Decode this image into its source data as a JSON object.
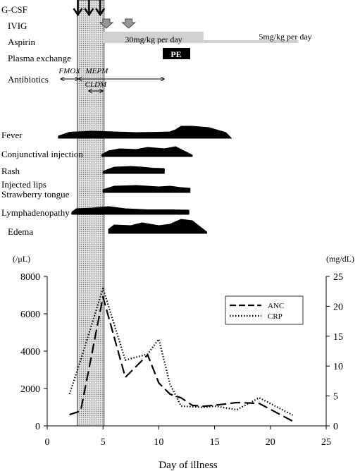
{
  "timeline": {
    "rows": {
      "gcsf": "G-CSF",
      "ivig": "IVIG",
      "aspirin": "Aspirin",
      "plasma_exchange": "Plasma exchange",
      "antibiotics": "Antibiotics"
    },
    "aspirin_high": {
      "label": "30mg/kg per day",
      "start_day": 5,
      "end_day": 14
    },
    "aspirin_low": {
      "label": "5mg/kg per day",
      "start_day": 14,
      "end_day": 25
    },
    "pe_box": {
      "label": "PE",
      "start_day": 10.5,
      "end_day": 12
    },
    "gcsf_days": [
      3,
      4,
      5
    ],
    "ivig_days": [
      5.3,
      7.3
    ],
    "antibiotics": [
      {
        "label": "FMOX",
        "start_day": 1.2,
        "end_day": 2.8
      },
      {
        "label": "MEPM",
        "start_day": 2.8,
        "end_day": 10.5
      },
      {
        "label": "CLDM",
        "start_day": 3.7,
        "end_day": 5
      }
    ],
    "shaded_period": {
      "start_day": 2.7,
      "end_day": 5.1
    },
    "symptoms": [
      {
        "key": "fever",
        "label": "Fever",
        "start_day": 1,
        "end_day": 16.5,
        "profile": [
          [
            1,
            0.3
          ],
          [
            2,
            0.85
          ],
          [
            4,
            1
          ],
          [
            6,
            0.9
          ],
          [
            8,
            0.8
          ],
          [
            10,
            0.85
          ],
          [
            11,
            0.9
          ],
          [
            11.5,
            1.2
          ],
          [
            12,
            1.7
          ],
          [
            13,
            1.7
          ],
          [
            14.5,
            1.5
          ],
          [
            16,
            0.8
          ],
          [
            16.5,
            0
          ]
        ]
      },
      {
        "key": "conjunctival",
        "label": "Conjunctival injection",
        "start_day": 4.9,
        "end_day": 13,
        "profile": [
          [
            4.9,
            0.3
          ],
          [
            5.5,
            0.8
          ],
          [
            6.5,
            1.1
          ],
          [
            8,
            1
          ],
          [
            9,
            1.3
          ],
          [
            10.5,
            1.1
          ],
          [
            11.5,
            1.4
          ],
          [
            12,
            1
          ],
          [
            12.5,
            0.6
          ],
          [
            13,
            0.2
          ]
        ]
      },
      {
        "key": "rash",
        "label": "Rash",
        "start_day": 5,
        "end_day": 10.5,
        "profile": [
          [
            5,
            0.3
          ],
          [
            6,
            0.9
          ],
          [
            7.5,
            1
          ],
          [
            8.5,
            0.9
          ],
          [
            9.5,
            0.75
          ],
          [
            10.5,
            0.7
          ]
        ]
      },
      {
        "key": "lips",
        "label": "Injected  lips\nStrawberry tongue",
        "start_day": 5,
        "end_day": 12.8,
        "profile": [
          [
            5,
            0.4
          ],
          [
            6,
            0.9
          ],
          [
            8,
            1
          ],
          [
            10,
            0.8
          ],
          [
            11,
            0.9
          ],
          [
            12,
            0.7
          ],
          [
            12.8,
            0.6
          ]
        ]
      },
      {
        "key": "lymph",
        "label": "Lymphadenopathy",
        "start_day": 2.2,
        "end_day": 12.7,
        "profile": [
          [
            2.2,
            0.3
          ],
          [
            2.6,
            0.8
          ],
          [
            4,
            0.9
          ],
          [
            5.5,
            1.1
          ],
          [
            7,
            0.8
          ],
          [
            9,
            0.65
          ],
          [
            11,
            0.65
          ],
          [
            12.7,
            0.6
          ]
        ]
      },
      {
        "key": "edema",
        "label": "Edema",
        "start_day": 5.5,
        "end_day": 14.3,
        "profile": [
          [
            5.5,
            0.6
          ],
          [
            6,
            1.2
          ],
          [
            7.5,
            1.1
          ],
          [
            8.5,
            1.5
          ],
          [
            10,
            1.1
          ],
          [
            11,
            1.3
          ],
          [
            12,
            2
          ],
          [
            13,
            1.8
          ],
          [
            14.3,
            0.2
          ]
        ]
      }
    ]
  },
  "chart_data": {
    "type": "line",
    "title": "",
    "xlabel": "Day of illness",
    "ylabel_left": "(/μL)",
    "ylabel_right": "(mg/dL)",
    "xlim": [
      0,
      25
    ],
    "ylim_left": [
      0,
      8000
    ],
    "ylim_right": [
      0,
      25
    ],
    "x_ticks": [
      "0",
      "5",
      "10",
      "15",
      "20",
      "25"
    ],
    "y_left_ticks": [
      "0",
      "2000",
      "4000",
      "6000",
      "8000"
    ],
    "y_right_ticks": [
      "0",
      "5",
      "10",
      "15",
      "20",
      "25"
    ],
    "legend_position": "top-right",
    "series": [
      {
        "name": "ANC",
        "axis": "left",
        "style": "dashed",
        "x": [
          2,
          3,
          5,
          7,
          9,
          10,
          11,
          12,
          13,
          14,
          15,
          17,
          19,
          22
        ],
        "y": [
          600,
          800,
          6900,
          2600,
          3800,
          2300,
          1700,
          1500,
          1100,
          1050,
          1100,
          1250,
          1200,
          250
        ]
      },
      {
        "name": "CRP",
        "axis": "right",
        "style": "dotted",
        "x": [
          2,
          3,
          5,
          7,
          9,
          10,
          11,
          12,
          13,
          14,
          15,
          17,
          19,
          22
        ],
        "y": [
          5.3,
          11,
          23,
          11,
          12,
          14.5,
          7,
          3.3,
          3.2,
          3.1,
          3.3,
          2.7,
          4.7,
          1.8
        ]
      }
    ]
  }
}
